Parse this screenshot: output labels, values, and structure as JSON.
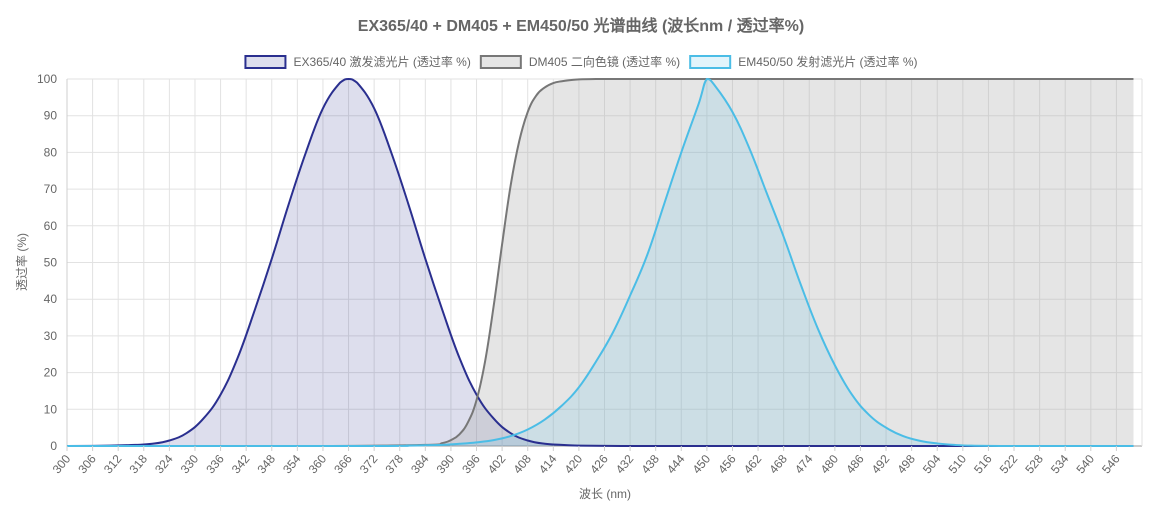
{
  "chart_data": {
    "type": "area",
    "title": "EX365/40 + DM405 + EM450/50 光谱曲线 (波长nm / 透过率%)",
    "xlabel": "波长 (nm)",
    "ylabel": "透过率 (%)",
    "xlim": [
      300,
      550
    ],
    "ylim": [
      0,
      100
    ],
    "x_ticks": [
      "300",
      "306",
      "312",
      "318",
      "324",
      "330",
      "336",
      "342",
      "348",
      "354",
      "360",
      "366",
      "372",
      "378",
      "384",
      "390",
      "396",
      "402",
      "408",
      "414",
      "420",
      "426",
      "432",
      "438",
      "444",
      "450",
      "456",
      "462",
      "468",
      "474",
      "480",
      "486",
      "492",
      "498",
      "504",
      "510",
      "516",
      "522",
      "528",
      "534",
      "540",
      "546"
    ],
    "y_ticks": [
      "0",
      "10",
      "20",
      "30",
      "40",
      "50",
      "60",
      "70",
      "80",
      "90",
      "100"
    ],
    "grid": true,
    "legend_position": "top",
    "series": [
      {
        "name": "EX365/40 激发滤光片 (透过率 %)",
        "color": "#2a2f8f",
        "fill": "rgba(42,47,143,0.16)",
        "x": [
          300,
          310,
          316,
          320,
          324,
          328,
          332,
          336,
          340,
          344,
          348,
          352,
          356,
          360,
          364,
          366,
          368,
          372,
          376,
          380,
          384,
          388,
          392,
          396,
          400,
          404,
          408,
          412,
          416,
          420,
          430,
          440,
          460,
          550
        ],
        "y": [
          0,
          0.1,
          0.3,
          0.6,
          1.5,
          3.5,
          7.5,
          14,
          24,
          37,
          51,
          66,
          80,
          92,
          99,
          100,
          99,
          92,
          80,
          66,
          51,
          37,
          24,
          14,
          7.5,
          3.5,
          1.5,
          0.6,
          0.3,
          0.1,
          0,
          0,
          0,
          0
        ]
      },
      {
        "name": "DM405 二向色镜 (透过率 %)",
        "color": "#777777",
        "fill": "rgba(170,170,170,0.3)",
        "x": [
          300,
          360,
          384,
          388,
          390,
          392,
          394,
          396,
          398,
          400,
          402,
          404,
          406,
          408,
          410,
          412,
          414,
          416,
          418,
          420,
          424,
          428,
          440,
          550
        ],
        "y": [
          0,
          0,
          0.3,
          0.8,
          1.6,
          3.2,
          6.5,
          12.5,
          23,
          38,
          55,
          71,
          83,
          91,
          95.5,
          97.7,
          98.9,
          99.4,
          99.7,
          99.9,
          100,
          100,
          100,
          100
        ]
      },
      {
        "name": "EM450/50 发射滤光片 (透过率 %)",
        "color": "#4bbde6",
        "fill": "rgba(75,189,230,0.16)",
        "x": [
          300,
          370,
          380,
          384,
          388,
          392,
          396,
          400,
          404,
          408,
          412,
          416,
          420,
          424,
          428,
          432,
          436,
          440,
          444,
          448,
          450,
          452,
          456,
          460,
          464,
          468,
          472,
          476,
          480,
          484,
          488,
          492,
          496,
          500,
          504,
          508,
          512,
          520,
          530,
          550
        ],
        "y": [
          0,
          0,
          0.1,
          0.2,
          0.3,
          0.6,
          1.0,
          1.6,
          2.7,
          4.5,
          7.2,
          11,
          16,
          23,
          31,
          41,
          52,
          66,
          80,
          93,
          100,
          98,
          91,
          81,
          69,
          57,
          44,
          32,
          22,
          14,
          8.5,
          5,
          2.7,
          1.4,
          0.7,
          0.3,
          0.1,
          0,
          0,
          0
        ]
      }
    ]
  }
}
